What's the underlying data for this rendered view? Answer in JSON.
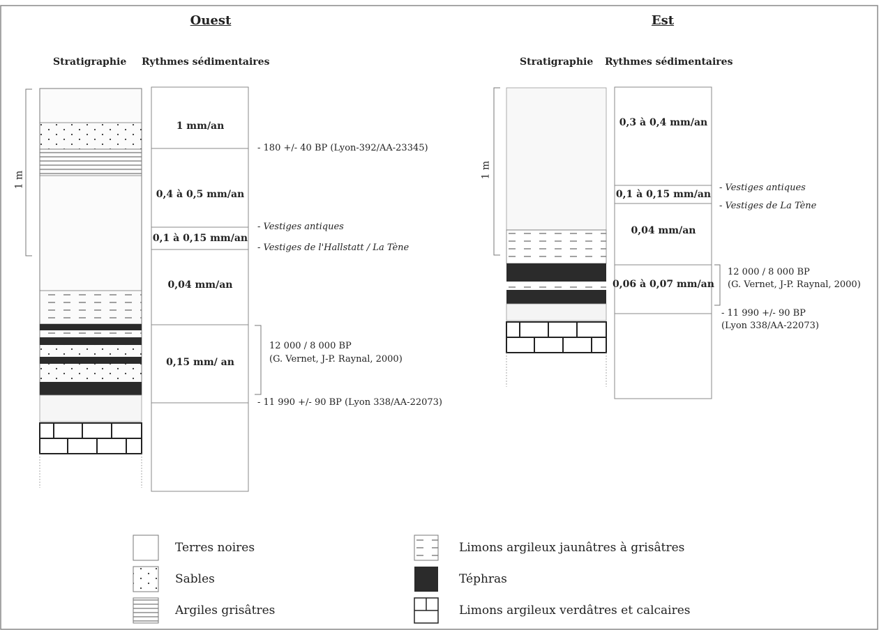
{
  "west": {
    "title": "Ouest",
    "col_stratigraphie": "Stratigraphie",
    "col_rythmes": "Rythmes sédimentaires",
    "scale": "1 m",
    "rates": [
      "1 mm/an",
      "0,4 à 0,5 mm/an",
      "0,1 à 0,15 mm/an",
      "0,04 mm/an",
      "0,15 mm/ an"
    ],
    "annotations": {
      "a1": "- 180 +/- 40 BP (Lyon-392/AA-23345)",
      "a2": "- Vestiges antiques",
      "a3": "- Vestiges de l'Hallstatt / La Tène",
      "a4": "12 000 / 8 000 BP",
      "a5": "(G. Vernet, J-P. Raynal, 2000)",
      "a6": "- 11 990 +/- 90 BP (Lyon 338/AA-22073)"
    }
  },
  "east": {
    "title": "Est",
    "col_stratigraphie": "Stratigraphie",
    "col_rythmes": "Rythmes sédimentaires",
    "scale": "1 m",
    "rates": [
      "0,3 à 0,4 mm/an",
      "0,1 à 0,15 mm/an",
      "0,04 mm/an",
      "0,06 à 0,07 mm/an"
    ],
    "annotations": {
      "a1": "- Vestiges antiques",
      "a2": "- Vestiges de La Tène",
      "a3": "12 000 / 8 000 BP",
      "a4": "(G. Vernet, J-P. Raynal, 2000)",
      "a5": "- 11 990 +/- 90 BP",
      "a6": "(Lyon 338/AA-22073)"
    }
  },
  "legend": {
    "terres_noires": "Terres noires",
    "sables": "Sables",
    "argiles": "Argiles grisâtres",
    "limons_jaunatres": "Limons argileux jaunâtres à grisâtres",
    "tephras": "Téphras",
    "limons_verdatres": "Limons argileux verdâtres et calcaires"
  },
  "colors": {
    "tephra": "#2b2b2b",
    "line": "#777777"
  }
}
